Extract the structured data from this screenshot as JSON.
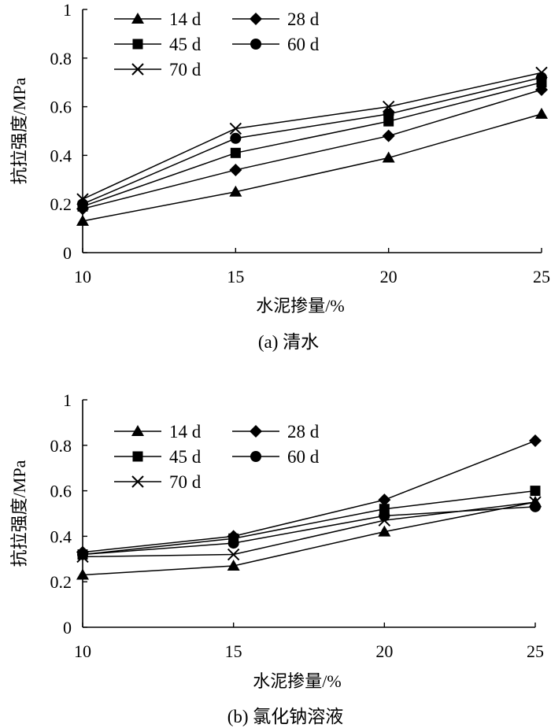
{
  "chart_data": [
    {
      "type": "line",
      "caption": "(a) 清水",
      "xlabel": "水泥掺量/%",
      "ylabel": "抗拉强度/MPa",
      "x": [
        10,
        15,
        20,
        25
      ],
      "xlim": [
        10,
        25
      ],
      "ylim": [
        0,
        1
      ],
      "xticks": [
        "10",
        "15",
        "20",
        "25"
      ],
      "yticks": [
        "0",
        "0.2",
        "0.4",
        "0.6",
        "0.8",
        "1"
      ],
      "legend_position": "top-left",
      "series": [
        {
          "name": "14 d",
          "marker": "triangle",
          "values": [
            0.13,
            0.25,
            0.39,
            0.57
          ]
        },
        {
          "name": "28 d",
          "marker": "diamond",
          "values": [
            0.18,
            0.34,
            0.48,
            0.67
          ]
        },
        {
          "name": "45 d",
          "marker": "square",
          "values": [
            0.19,
            0.41,
            0.54,
            0.7
          ]
        },
        {
          "name": "60 d",
          "marker": "circle",
          "values": [
            0.2,
            0.47,
            0.57,
            0.72
          ]
        },
        {
          "name": "70 d",
          "marker": "x",
          "values": [
            0.22,
            0.51,
            0.6,
            0.74
          ]
        }
      ]
    },
    {
      "type": "line",
      "caption": "(b) 氯化钠溶液",
      "xlabel": "水泥掺量/%",
      "ylabel": "抗拉强度/MPa",
      "x": [
        10,
        15,
        20,
        25
      ],
      "xlim": [
        10,
        25
      ],
      "ylim": [
        0,
        1
      ],
      "xticks": [
        "10",
        "15",
        "20",
        "25"
      ],
      "yticks": [
        "0",
        "0.2",
        "0.4",
        "0.6",
        "0.8",
        "1"
      ],
      "legend_position": "top-left",
      "series": [
        {
          "name": "14 d",
          "marker": "triangle",
          "values": [
            0.23,
            0.27,
            0.42,
            0.55
          ]
        },
        {
          "name": "28 d",
          "marker": "diamond",
          "values": [
            0.33,
            0.4,
            0.56,
            0.82
          ]
        },
        {
          "name": "45 d",
          "marker": "square",
          "values": [
            0.32,
            0.39,
            0.52,
            0.6
          ]
        },
        {
          "name": "60 d",
          "marker": "circle",
          "values": [
            0.32,
            0.37,
            0.49,
            0.53
          ]
        },
        {
          "name": "70 d",
          "marker": "x",
          "values": [
            0.31,
            0.32,
            0.47,
            0.55
          ]
        }
      ]
    }
  ]
}
